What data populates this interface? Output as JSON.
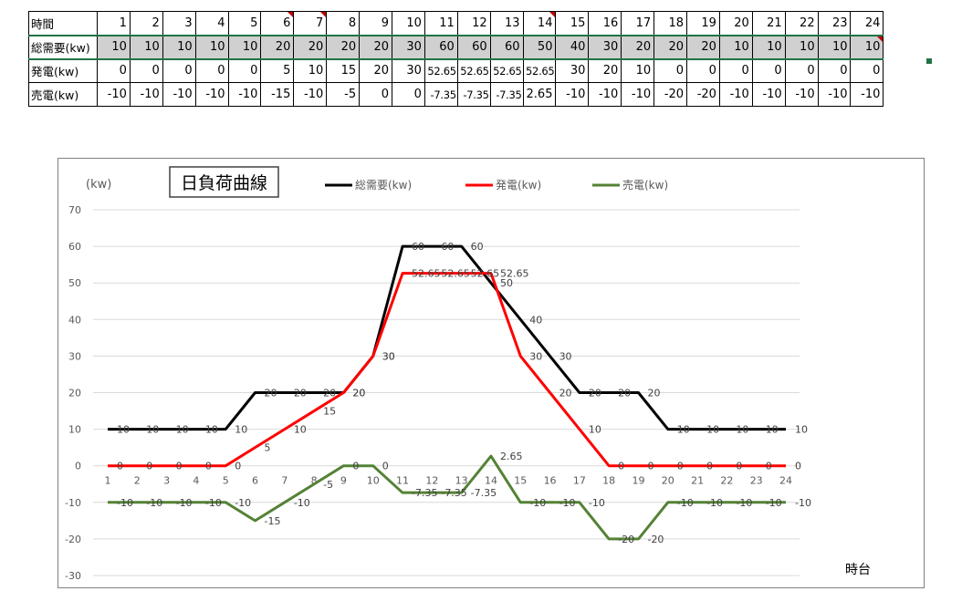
{
  "table": {
    "header_label": "時間",
    "hours": [
      "1",
      "2",
      "3",
      "4",
      "5",
      "6",
      "7",
      "8",
      "9",
      "10",
      "11",
      "12",
      "13",
      "14",
      "15",
      "16",
      "17",
      "18",
      "19",
      "20",
      "21",
      "22",
      "23",
      "24"
    ],
    "rows": [
      {
        "label": "総需要(kw)",
        "cells": [
          "10",
          "10",
          "10",
          "10",
          "10",
          "20",
          "20",
          "20",
          "20",
          "30",
          "60",
          "60",
          "60",
          "50",
          "40",
          "30",
          "20",
          "20",
          "20",
          "10",
          "10",
          "10",
          "10",
          "10"
        ]
      },
      {
        "label": "発電(kw)",
        "cells": [
          "0",
          "0",
          "0",
          "0",
          "0",
          "5",
          "10",
          "15",
          "20",
          "30",
          "52.65",
          "52.65",
          "52.65",
          "52.65",
          "30",
          "20",
          "10",
          "0",
          "0",
          "0",
          "0",
          "0",
          "0",
          "0"
        ]
      },
      {
        "label": "売電(kw)",
        "cells": [
          "-10",
          "-10",
          "-10",
          "-10",
          "-10",
          "-15",
          "-10",
          "-5",
          "0",
          "0",
          "-7.35",
          "-7.35",
          "-7.35",
          "2.65",
          "-10",
          "-10",
          "-10",
          "-20",
          "-20",
          "-10",
          "-10",
          "-10",
          "-10",
          "-10"
        ]
      }
    ]
  },
  "chart_data": {
    "type": "line",
    "title": "日負荷曲線",
    "ylabel": "(kw)",
    "xlabel": "時台",
    "ylim": [
      -30,
      70
    ],
    "yticks": [
      -30,
      -20,
      -10,
      0,
      10,
      20,
      30,
      40,
      50,
      60,
      70
    ],
    "grid": true,
    "legend_position": "top",
    "categories": [
      "1",
      "2",
      "3",
      "4",
      "5",
      "6",
      "7",
      "8",
      "9",
      "10",
      "11",
      "12",
      "13",
      "14",
      "15",
      "16",
      "17",
      "18",
      "19",
      "20",
      "21",
      "22",
      "23",
      "24"
    ],
    "series": [
      {
        "name": "総需要(kw)",
        "color": "#000000",
        "values": [
          10,
          10,
          10,
          10,
          10,
          20,
          20,
          20,
          20,
          30,
          60,
          60,
          60,
          50,
          40,
          30,
          20,
          20,
          20,
          10,
          10,
          10,
          10,
          10
        ]
      },
      {
        "name": "発電(kw)",
        "color": "#ff0000",
        "values": [
          0,
          0,
          0,
          0,
          0,
          5,
          10,
          15,
          20,
          30,
          52.65,
          52.65,
          52.65,
          52.65,
          30,
          20,
          10,
          0,
          0,
          0,
          0,
          0,
          0,
          0
        ]
      },
      {
        "name": "売電(kw)",
        "color": "#548235",
        "values": [
          -10,
          -10,
          -10,
          -10,
          -10,
          -15,
          -10,
          -5,
          0,
          0,
          -7.35,
          -7.35,
          -7.35,
          2.65,
          -10,
          -10,
          -10,
          -20,
          -20,
          -10,
          -10,
          -10,
          -10,
          -10
        ]
      }
    ]
  }
}
